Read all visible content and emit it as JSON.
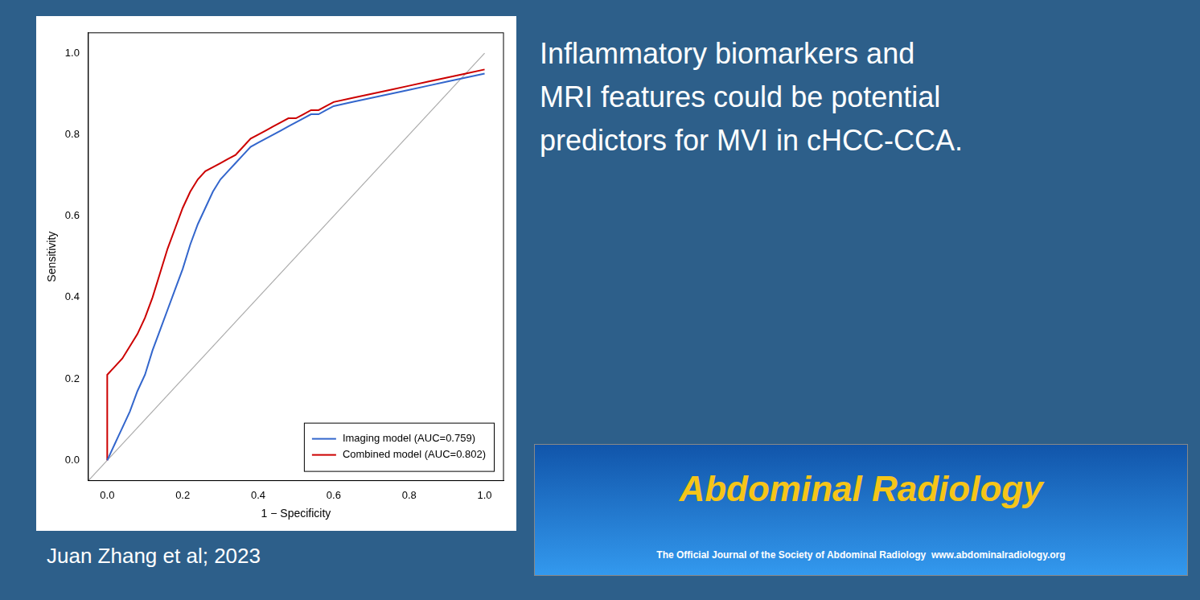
{
  "chart_data": {
    "type": "line",
    "title": "Inflammatory biomarkers and\nMRI features could be potential\npredictors for MVI in cHCC-CCA.",
    "annotations": [
      "Juan Zhang et al; 2023",
      "Abdominal Radiology",
      "The Official Journal of the Society of Abdominal Radiology  www.abdominalradiology.org"
    ],
    "xlabel": "1 − Specificity",
    "ylabel": "Sensitivity",
    "series": [
      {
        "color": "#aaaaaa",
        "x": [
          -0.05,
          1.0
        ],
        "values": [
          -0.05,
          1.0
        ]
      },
      {
        "name": "Imaging model (AUC=0.759)",
        "color": "#3366cc",
        "x": [
          0.0,
          0.005,
          0.01,
          0.02,
          0.03,
          0.04,
          0.06,
          0.08,
          0.1,
          0.12,
          0.14,
          0.16,
          0.18,
          0.2,
          0.22,
          0.24,
          0.26,
          0.28,
          0.3,
          0.32,
          0.34,
          0.36,
          0.38,
          0.4,
          0.42,
          0.44,
          0.46,
          0.48,
          0.5,
          0.52,
          0.54,
          0.56,
          0.58,
          0.6,
          0.65,
          0.7,
          0.75,
          0.8,
          0.85,
          0.9,
          0.95,
          1.0
        ],
        "values": [
          0.0,
          0.01,
          0.02,
          0.04,
          0.06,
          0.08,
          0.12,
          0.17,
          0.21,
          0.27,
          0.32,
          0.37,
          0.42,
          0.47,
          0.53,
          0.58,
          0.62,
          0.66,
          0.69,
          0.71,
          0.73,
          0.75,
          0.77,
          0.78,
          0.79,
          0.8,
          0.81,
          0.82,
          0.83,
          0.84,
          0.85,
          0.85,
          0.86,
          0.87,
          0.88,
          0.89,
          0.9,
          0.91,
          0.92,
          0.93,
          0.94,
          0.95
        ]
      },
      {
        "name": "Combined model (AUC=0.802)",
        "color": "#cc0000",
        "x": [
          0.0,
          0.0,
          0.005,
          0.01,
          0.02,
          0.04,
          0.06,
          0.08,
          0.1,
          0.12,
          0.14,
          0.16,
          0.18,
          0.2,
          0.22,
          0.24,
          0.26,
          0.28,
          0.3,
          0.32,
          0.34,
          0.36,
          0.38,
          0.4,
          0.42,
          0.44,
          0.46,
          0.48,
          0.5,
          0.52,
          0.54,
          0.56,
          0.58,
          0.6,
          0.65,
          0.7,
          0.75,
          0.8,
          0.85,
          0.9,
          0.95,
          1.0
        ],
        "values": [
          0.0,
          0.21,
          0.215,
          0.22,
          0.23,
          0.25,
          0.28,
          0.31,
          0.35,
          0.4,
          0.46,
          0.52,
          0.57,
          0.62,
          0.66,
          0.69,
          0.71,
          0.72,
          0.73,
          0.74,
          0.75,
          0.77,
          0.79,
          0.8,
          0.81,
          0.82,
          0.83,
          0.84,
          0.84,
          0.85,
          0.86,
          0.86,
          0.87,
          0.88,
          0.89,
          0.9,
          0.91,
          0.92,
          0.93,
          0.94,
          0.95,
          0.96
        ]
      }
    ],
    "xlim": [
      -0.05,
      1.05
    ],
    "ylim": [
      -0.05,
      1.05
    ],
    "xticks": [
      {
        "value": 0,
        "label": "0.0"
      },
      0.2,
      0.4,
      0.6,
      0.8,
      {
        "value": 1,
        "label": "1.0"
      }
    ],
    "yticks": [
      {
        "value": 0,
        "label": "0.0"
      },
      0.2,
      0.4,
      0.6,
      0.8,
      {
        "value": 1,
        "label": "1.0"
      }
    ],
    "grid": false,
    "legend": "lower right"
  }
}
